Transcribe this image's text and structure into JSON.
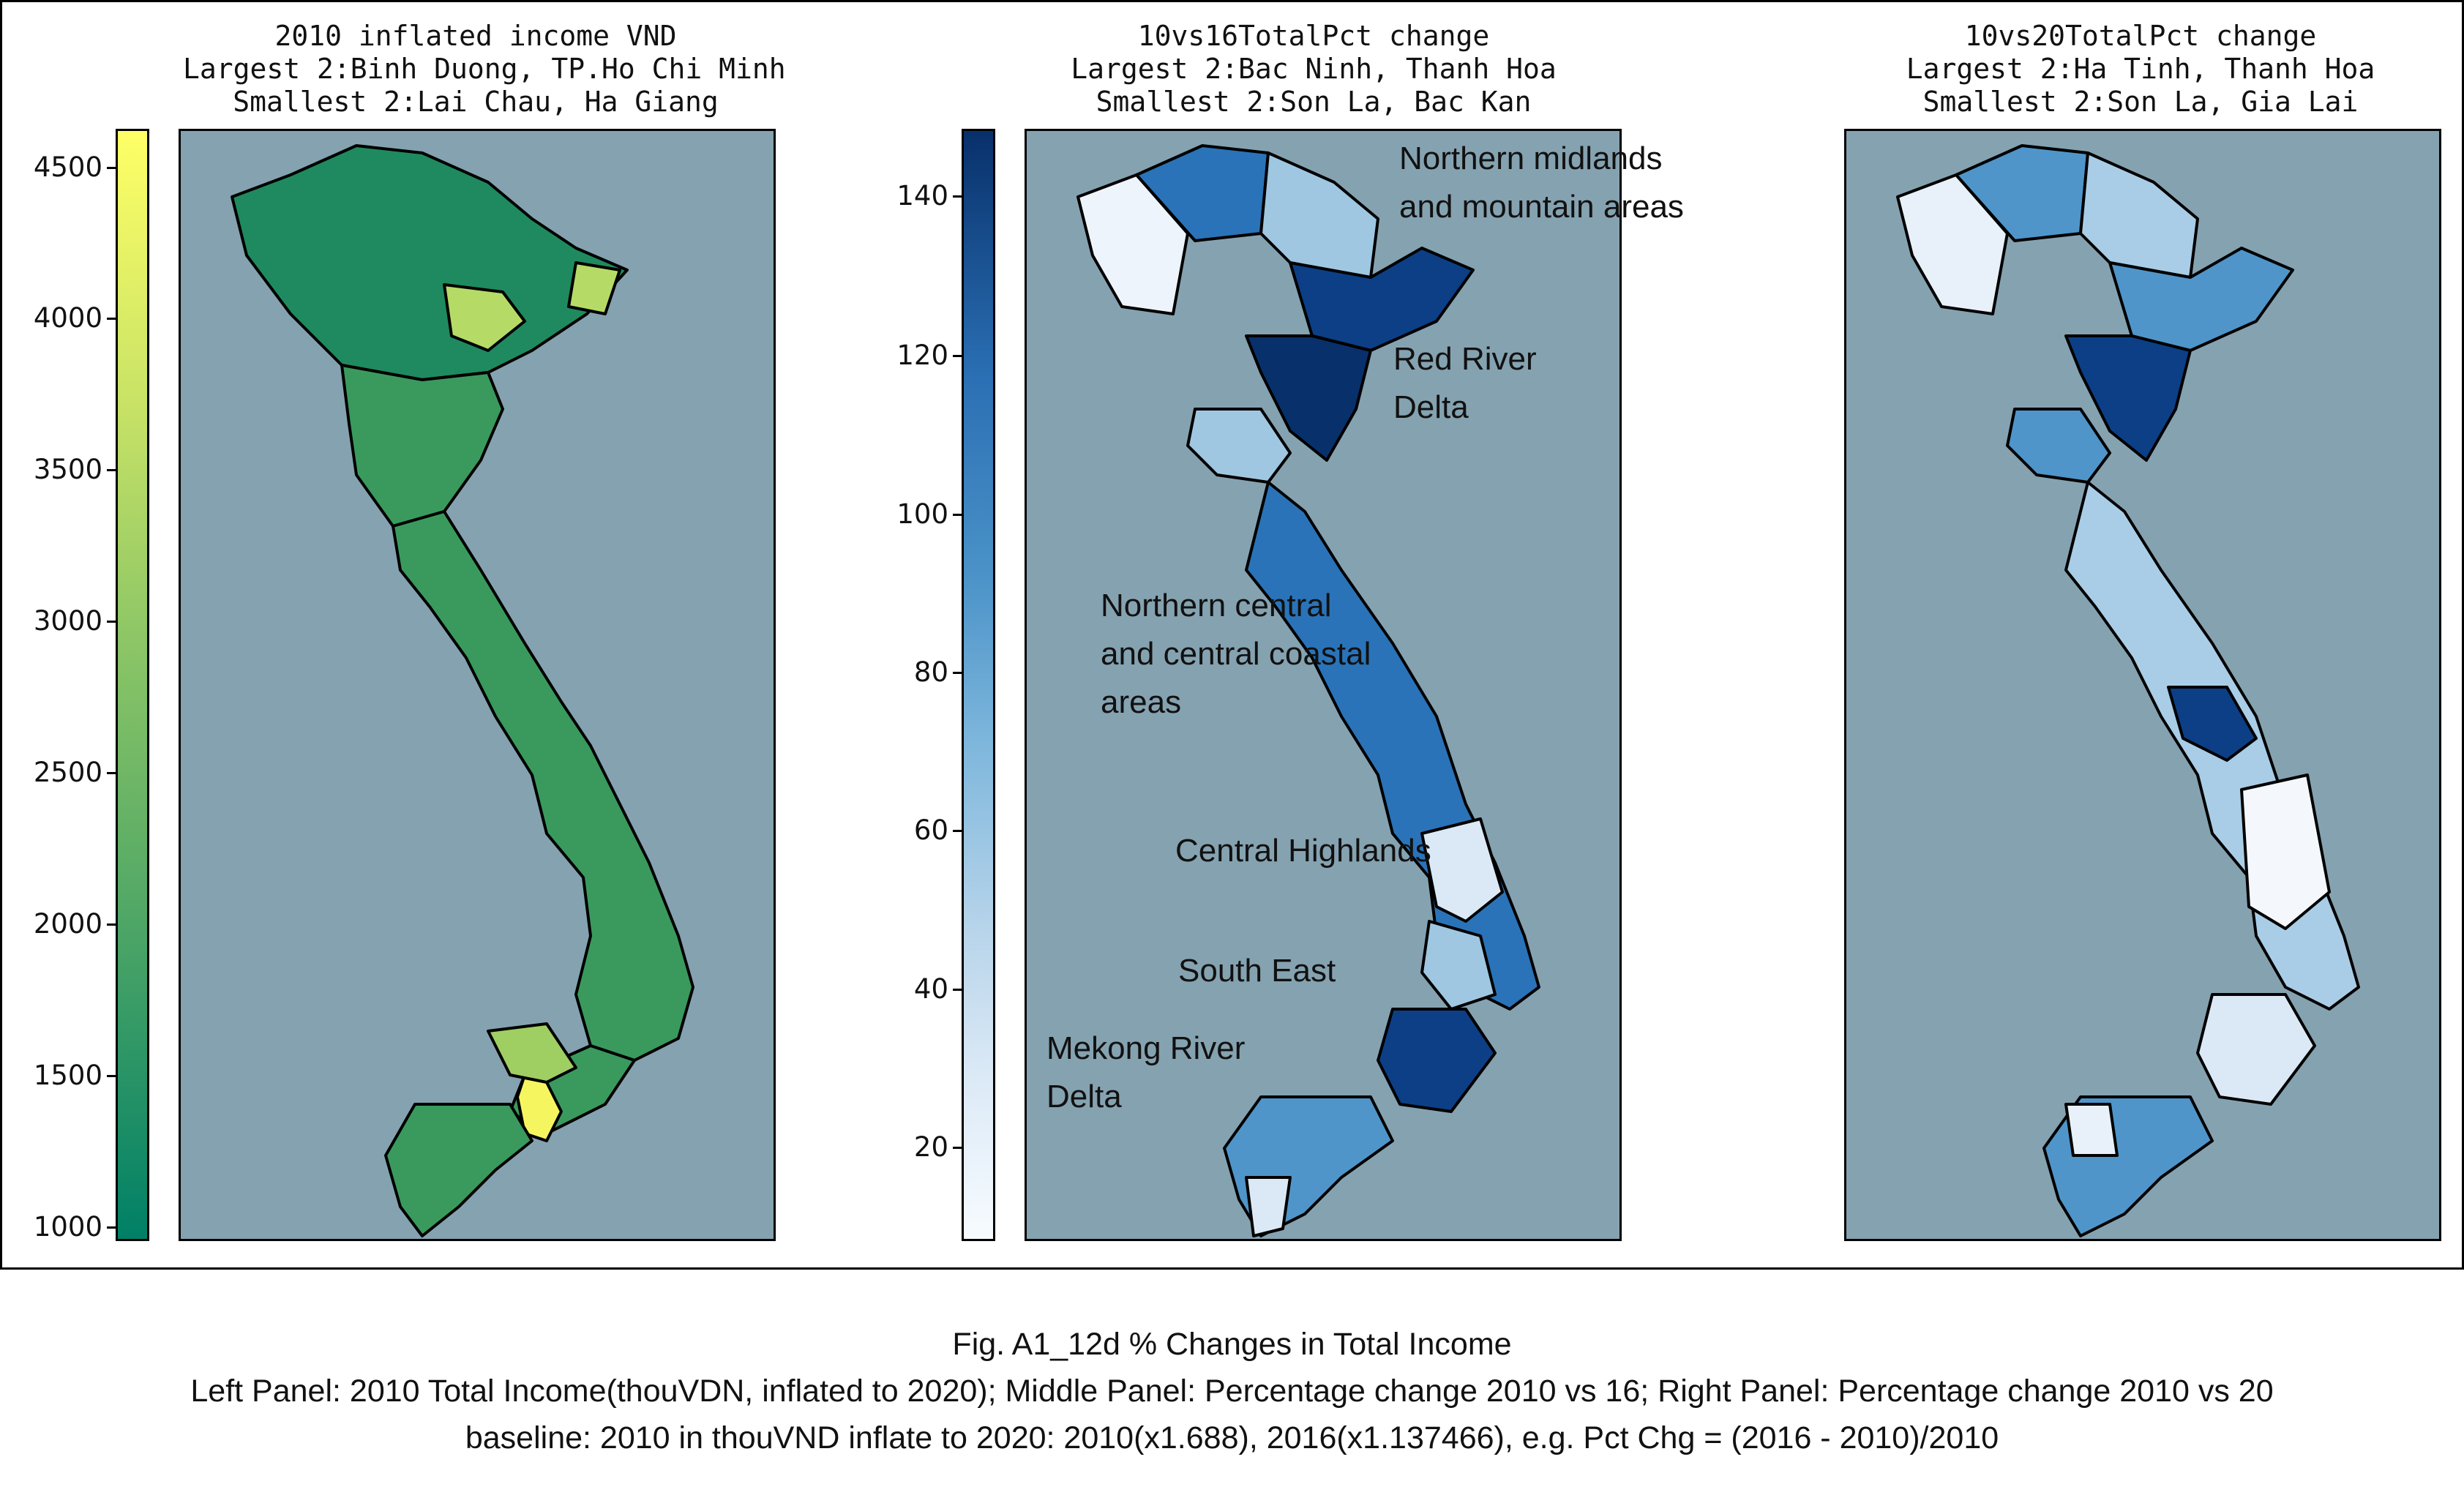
{
  "panels": [
    {
      "title_lines": [
        "2010 inflated income VND",
        "Largest 2:Binh Duong, TP.Ho Chi Minh",
        "Smallest 2:Lai Chau, Ha Giang"
      ],
      "colorbar": {
        "colormap": "summer",
        "ticks": [
          "4500",
          "4000",
          "3500",
          "3000",
          "2500",
          "2000",
          "1500",
          "1000"
        ]
      },
      "colors": {
        "base": "#3a9a5e",
        "north": "#1f8a5f",
        "high": "#f5f560",
        "mid": "#9fce62"
      }
    },
    {
      "title_lines": [
        "10vs16TotalPct change",
        "Largest 2:Bac Ninh, Thanh Hoa",
        "Smallest 2:Son La, Bac Kan"
      ],
      "colorbar": {
        "colormap": "Blues",
        "ticks": [
          "140",
          "120",
          "100",
          "80",
          "60",
          "40",
          "20"
        ]
      },
      "region_labels": [
        {
          "lines": [
            "Northern midlands",
            "and mountain areas"
          ]
        },
        {
          "lines": [
            "Red River",
            "Delta"
          ]
        },
        {
          "lines": [
            "Northern central",
            "and central coastal",
            "areas"
          ]
        },
        {
          "lines": [
            "Central Highlands"
          ]
        },
        {
          "lines": [
            "South East"
          ]
        },
        {
          "lines": [
            "Mekong River",
            "Delta"
          ]
        }
      ],
      "colors": {
        "dark": "#0c3f86",
        "mid": "#2a73b8",
        "light": "#9fc7e2",
        "pale": "#eef4fb"
      }
    },
    {
      "title_lines": [
        "10vs20TotalPct change",
        "Largest 2:Ha Tinh, Thanh Hoa",
        "Smallest 2:Son La, Gia Lai"
      ],
      "colors": {
        "dark": "#0c3f86",
        "mid": "#4f95c9",
        "light": "#a9cde6",
        "pale": "#e8f1fa"
      }
    }
  ],
  "map_background": "#85a2b0",
  "caption": {
    "line1": "Fig. A1_12d % Changes in Total Income",
    "line2": "Left Panel: 2010 Total Income(thouVDN, inflated to 2020); Middle Panel: Percentage change 2010 vs 16; Right Panel: Percentage change 2010 vs 20",
    "line3": "baseline: 2010 in thouVND inflate to 2020: 2010(x1.688), 2016(x1.137466), e.g. Pct Chg = (2016 - 2010)/2010"
  }
}
